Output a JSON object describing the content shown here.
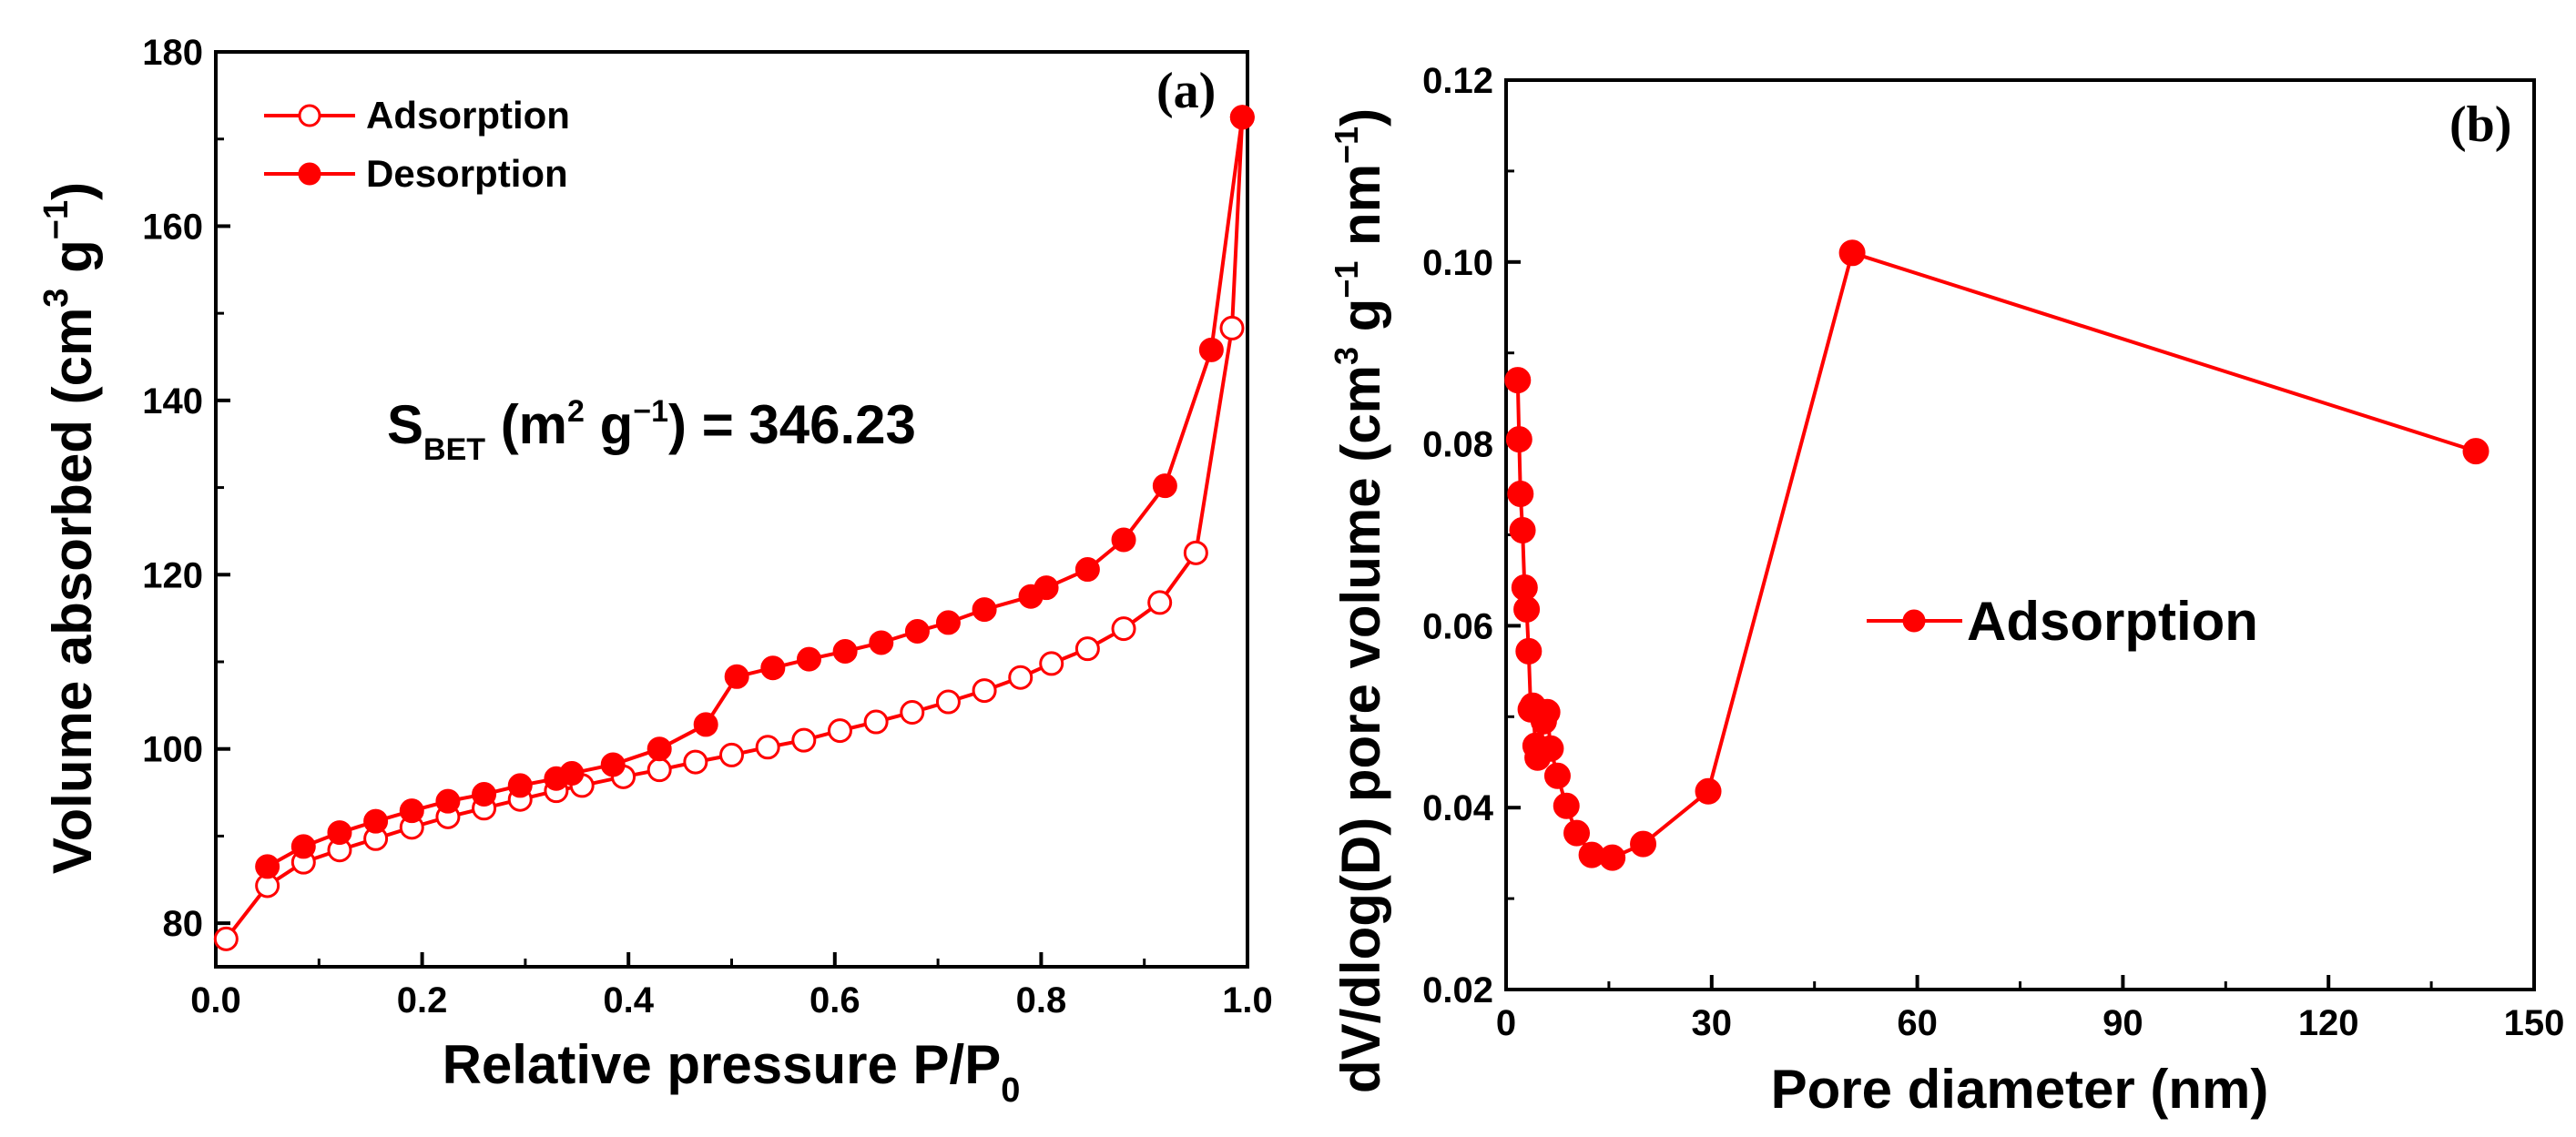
{
  "colors": {
    "series": "#ff0000",
    "axis": "#000000",
    "background": "#ffffff"
  },
  "chart_data": [
    {
      "type": "line",
      "panel_label": "(a)",
      "xlabel": "Relative pressure P/P",
      "xlabel_sub": "0",
      "ylabel": "Volume absorbed (cm",
      "ylabel_sup1": "3",
      "ylabel_mid": " g",
      "ylabel_sup2": "−1",
      "ylabel_end": ")",
      "xlim": [
        0.0,
        1.0
      ],
      "ylim": [
        75,
        180
      ],
      "xticks": [
        0.0,
        0.2,
        0.4,
        0.6,
        0.8,
        1.0
      ],
      "xtick_labels": [
        "0.0",
        "0.2",
        "0.4",
        "0.6",
        "0.8",
        "1.0"
      ],
      "yticks": [
        80,
        100,
        120,
        140,
        160,
        180
      ],
      "ytick_labels": [
        "80",
        "100",
        "120",
        "140",
        "160",
        "180"
      ],
      "annotation": {
        "prefix": "S",
        "prefix_sub": "BET",
        "mid1": " (m",
        "sup1": "2",
        "mid2": " g",
        "sup2": "−1",
        "suffix": ") = 346.23"
      },
      "legend": {
        "placement": "top-left",
        "entries": [
          "Adsorption",
          "Desorption"
        ]
      },
      "series": [
        {
          "name": "Adsorption",
          "marker": "open-circle",
          "x": [
            0.01,
            0.05,
            0.085,
            0.12,
            0.155,
            0.19,
            0.225,
            0.26,
            0.295,
            0.33,
            0.355,
            0.395,
            0.43,
            0.465,
            0.5,
            0.535,
            0.57,
            0.605,
            0.64,
            0.675,
            0.71,
            0.745,
            0.78,
            0.81,
            0.845,
            0.88,
            0.915,
            0.95,
            0.985,
            0.995
          ],
          "y": [
            78.2,
            84.3,
            87.0,
            88.4,
            89.7,
            91.0,
            92.2,
            93.2,
            94.2,
            95.2,
            95.8,
            96.8,
            97.6,
            98.5,
            99.3,
            100.2,
            101.0,
            102.1,
            103.1,
            104.2,
            105.4,
            106.7,
            108.2,
            109.8,
            111.5,
            113.8,
            116.8,
            122.5,
            148.3,
            172.5
          ]
        },
        {
          "name": "Desorption",
          "marker": "filled-circle",
          "x": [
            0.995,
            0.965,
            0.92,
            0.88,
            0.845,
            0.805,
            0.79,
            0.745,
            0.71,
            0.68,
            0.645,
            0.61,
            0.575,
            0.54,
            0.505,
            0.475,
            0.43,
            0.385,
            0.345,
            0.33,
            0.295,
            0.26,
            0.225,
            0.19,
            0.155,
            0.12,
            0.085,
            0.05
          ],
          "y": [
            172.5,
            145.8,
            130.2,
            124.0,
            120.6,
            118.5,
            117.5,
            116.0,
            114.5,
            113.5,
            112.2,
            111.2,
            110.3,
            109.3,
            108.3,
            102.8,
            100.0,
            98.2,
            97.2,
            96.6,
            95.8,
            94.8,
            94.0,
            92.9,
            91.7,
            90.4,
            88.8,
            86.5
          ]
        }
      ]
    },
    {
      "type": "line",
      "panel_label": "(b)",
      "xlabel": "Pore diameter (nm)",
      "ylabel": "dV/dlog(D) pore volume (cm",
      "ylabel_sup1": "3",
      "ylabel_mid": " g",
      "ylabel_sup2": "−1",
      "ylabel_mid2": " nm",
      "ylabel_sup3": "−1",
      "ylabel_end": ")",
      "xlim": [
        0,
        150
      ],
      "ylim": [
        0.02,
        0.12
      ],
      "xticks": [
        0,
        30,
        60,
        90,
        120,
        150
      ],
      "xtick_labels": [
        "0",
        "30",
        "60",
        "90",
        "120",
        "150"
      ],
      "yticks": [
        0.02,
        0.04,
        0.06,
        0.08,
        0.1,
        0.12
      ],
      "ytick_labels": [
        "0.02",
        "0.04",
        "0.06",
        "0.08",
        "0.10",
        "0.12"
      ],
      "legend": {
        "placement": "center-right",
        "entries": [
          "Adsorption"
        ]
      },
      "series": [
        {
          "name": "Adsorption",
          "marker": "filled-circle",
          "x": [
            1.7,
            1.9,
            2.1,
            2.4,
            2.7,
            3.0,
            3.3,
            3.6,
            3.9,
            4.3,
            4.6,
            5.0,
            5.5,
            6.0,
            6.5,
            7.5,
            8.8,
            10.3,
            12.5,
            15.5,
            20.0,
            29.5,
            50.5,
            141.5
          ],
          "y": [
            0.087,
            0.0805,
            0.0745,
            0.0705,
            0.0642,
            0.0618,
            0.0572,
            0.0508,
            0.0512,
            0.0468,
            0.0455,
            0.0462,
            0.0495,
            0.0505,
            0.0465,
            0.0435,
            0.0402,
            0.0372,
            0.0348,
            0.0345,
            0.036,
            0.0418,
            0.101,
            0.0792
          ]
        }
      ]
    }
  ]
}
